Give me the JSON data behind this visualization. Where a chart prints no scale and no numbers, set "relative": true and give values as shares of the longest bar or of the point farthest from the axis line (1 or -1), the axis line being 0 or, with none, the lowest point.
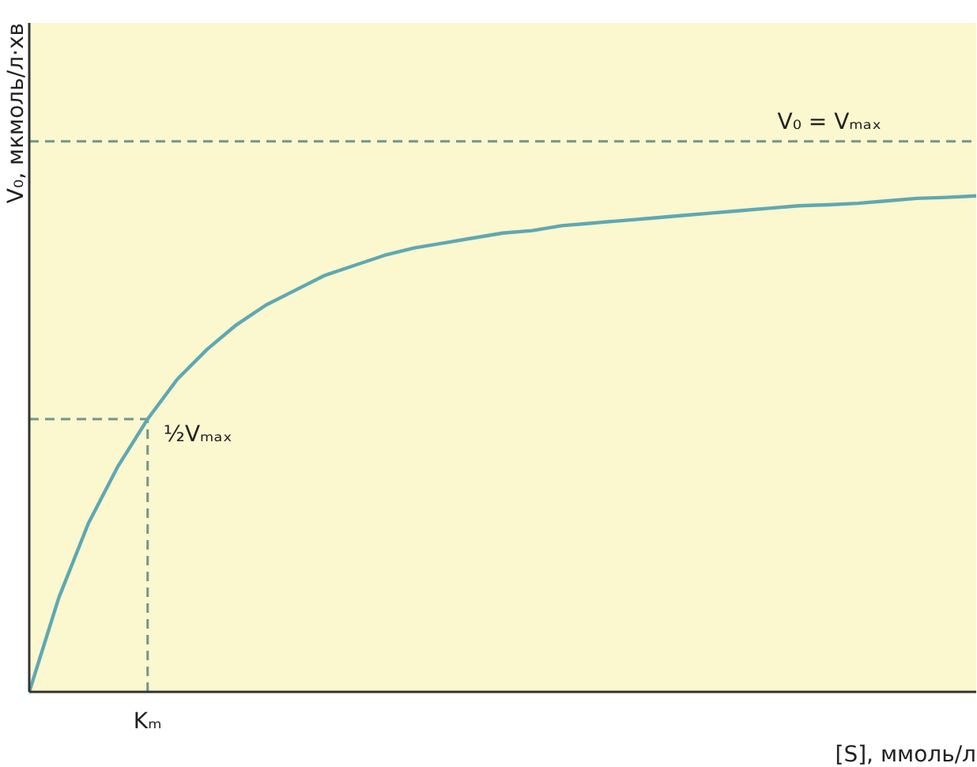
{
  "chart_data": {
    "type": "line",
    "relative": true,
    "xlabel": "[S], ммоль/л",
    "ylabel": "V₀, мкмоль/л·хв",
    "categories": [
      null,
      null,
      null,
      null,
      null,
      null,
      null,
      null,
      null,
      null,
      null,
      null,
      null,
      null,
      null,
      null,
      null,
      null,
      null,
      null,
      null,
      null,
      null,
      null,
      null,
      null,
      null,
      null,
      null,
      null,
      null,
      null,
      null
    ],
    "series": [
      {
        "color": "#5fa8b2",
        "values": [
          0,
          0.19,
          0.34,
          0.455,
          0.55,
          0.63,
          0.69,
          0.74,
          0.78,
          0.81,
          0.84,
          0.86,
          0.88,
          0.895,
          0.905,
          0.915,
          0.925,
          0.93,
          0.94,
          0.945,
          0.95,
          0.955,
          0.96,
          0.965,
          0.97,
          0.975,
          0.98,
          0.982,
          0.985,
          0.99,
          0.995,
          0.997,
          1.0
        ]
      }
    ],
    "ref_lines": [
      {
        "axis": "y",
        "value": 1.11,
        "label": "V₀ = Vₘₐₓ",
        "color": "#6f9888",
        "line_style": "dashed"
      },
      {
        "axis": "y",
        "value": 0.55,
        "label": "½Vₘₐₓ",
        "color": "#6f9888",
        "line_style": "dashed"
      }
    ],
    "annotations": [
      "Kₘ"
    ],
    "marker": "none",
    "line_style": "solid"
  }
}
